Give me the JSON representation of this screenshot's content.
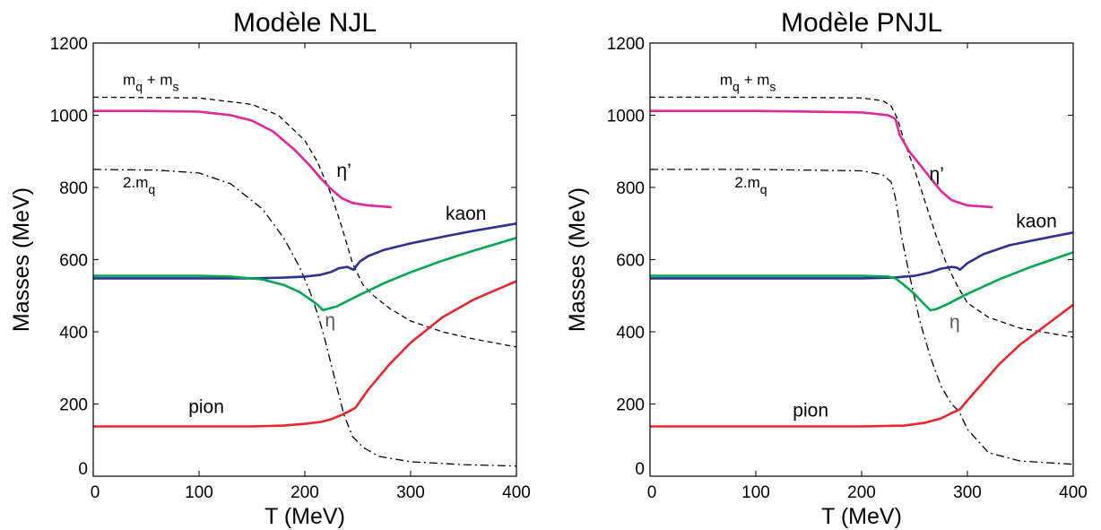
{
  "chart_data": [
    {
      "type": "line",
      "title": "Modèle NJL",
      "xlabel": "T (MeV)",
      "ylabel": "Masses (MeV)",
      "xlim": [
        0,
        400
      ],
      "ylim": [
        0,
        1200
      ],
      "xticks": [
        "0",
        "100",
        "200",
        "300",
        "400"
      ],
      "yticks": [
        "0",
        "200",
        "400",
        "600",
        "800",
        "1000",
        "1200"
      ],
      "grid": false,
      "legend": "none",
      "annotations": [
        {
          "key": "mqms",
          "base": "m",
          "sub1": "q",
          "mid": " + m",
          "sub2": "s",
          "x": 28,
          "y": 1085
        },
        {
          "key": "twomq",
          "base": "2.m",
          "sub1": "q",
          "x": 28,
          "y": 800
        },
        {
          "key": "etaprime",
          "text": "η’",
          "x": 230,
          "y": 830,
          "color": "#000000"
        },
        {
          "key": "kaon",
          "text": "kaon",
          "x": 333,
          "y": 710,
          "color": "#000000"
        },
        {
          "key": "eta",
          "text": "η",
          "x": 219,
          "y": 415,
          "color": "#555555"
        },
        {
          "key": "pion",
          "text": "pion",
          "x": 90,
          "y": 175,
          "color": "#000000"
        }
      ],
      "series": [
        {
          "key": "mq_plus_ms",
          "color": "#000000",
          "style": "dashed",
          "x": [
            0,
            100,
            150,
            175,
            200,
            212,
            225,
            235,
            245,
            255,
            265,
            280,
            300,
            330,
            360,
            400
          ],
          "y": [
            1050,
            1048,
            1030,
            1000,
            930,
            870,
            780,
            690,
            590,
            530,
            500,
            465,
            430,
            400,
            380,
            358
          ]
        },
        {
          "key": "two_mq",
          "color": "#000000",
          "style": "dashdot",
          "x": [
            0,
            60,
            100,
            130,
            160,
            180,
            195,
            205,
            212,
            218,
            224,
            230,
            237,
            245,
            255,
            270,
            300,
            350,
            400
          ],
          "y": [
            850,
            848,
            840,
            810,
            740,
            660,
            580,
            510,
            450,
            390,
            320,
            250,
            170,
            110,
            80,
            55,
            40,
            32,
            28
          ]
        },
        {
          "key": "eta_prime",
          "color": "#e0269b",
          "style": "solid",
          "x": [
            0,
            50,
            100,
            130,
            150,
            170,
            190,
            205,
            215,
            225,
            235,
            245,
            260,
            282
          ],
          "y": [
            1012,
            1012,
            1010,
            1000,
            985,
            955,
            905,
            860,
            825,
            795,
            770,
            757,
            750,
            745
          ]
        },
        {
          "key": "kaon",
          "color": "#2e3192",
          "style": "solid",
          "x": [
            0,
            100,
            150,
            180,
            200,
            215,
            225,
            232,
            240,
            246,
            252,
            260,
            275,
            300,
            330,
            360,
            400
          ],
          "y": [
            548,
            548,
            548,
            550,
            553,
            558,
            566,
            576,
            580,
            572,
            595,
            610,
            627,
            645,
            663,
            680,
            700
          ]
        },
        {
          "key": "eta",
          "color": "#00a651",
          "style": "solid",
          "x": [
            0,
            100,
            130,
            160,
            180,
            195,
            205,
            212,
            217,
            230,
            250,
            275,
            300,
            330,
            360,
            400
          ],
          "y": [
            555,
            555,
            553,
            545,
            530,
            510,
            490,
            475,
            460,
            470,
            500,
            535,
            565,
            597,
            625,
            660
          ]
        },
        {
          "key": "pion",
          "color": "#e8262d",
          "style": "solid",
          "x": [
            0,
            100,
            150,
            180,
            200,
            215,
            225,
            235,
            242,
            248,
            260,
            280,
            300,
            330,
            360,
            400
          ],
          "y": [
            138,
            138,
            138,
            140,
            145,
            150,
            158,
            170,
            180,
            190,
            240,
            310,
            370,
            440,
            490,
            540
          ]
        }
      ]
    },
    {
      "type": "line",
      "title": "Modèle PNJL",
      "xlabel": "T (MeV)",
      "ylabel": "Masses (MeV)",
      "xlim": [
        0,
        400
      ],
      "ylim": [
        0,
        1200
      ],
      "xticks": [
        "0",
        "100",
        "200",
        "300",
        "400"
      ],
      "yticks": [
        "0",
        "200",
        "400",
        "600",
        "800",
        "1000",
        "1200"
      ],
      "grid": false,
      "legend": "none",
      "annotations": [
        {
          "key": "mqms",
          "base": "m",
          "sub1": "q",
          "mid": " + m",
          "sub2": "s",
          "x": 66,
          "y": 1085
        },
        {
          "key": "twomq",
          "base": "2.m",
          "sub1": "q",
          "x": 80,
          "y": 800
        },
        {
          "key": "etaprime",
          "text": "η’",
          "x": 264,
          "y": 820,
          "color": "#000000"
        },
        {
          "key": "kaon",
          "text": "kaon",
          "x": 346,
          "y": 690,
          "color": "#000000"
        },
        {
          "key": "eta",
          "text": "η",
          "x": 283,
          "y": 410,
          "color": "#555555"
        },
        {
          "key": "pion",
          "text": "pion",
          "x": 135,
          "y": 165,
          "color": "#000000"
        }
      ],
      "series": [
        {
          "key": "mq_plus_ms",
          "color": "#000000",
          "style": "dashed",
          "x": [
            0,
            100,
            200,
            220,
            228,
            234,
            240,
            250,
            260,
            270,
            280,
            290,
            300,
            320,
            350,
            400
          ],
          "y": [
            1050,
            1050,
            1048,
            1040,
            1025,
            990,
            930,
            850,
            760,
            670,
            590,
            530,
            480,
            440,
            410,
            385
          ]
        },
        {
          "key": "two_mq",
          "color": "#000000",
          "style": "dashdot",
          "x": [
            0,
            100,
            200,
            220,
            228,
            232,
            238,
            245,
            255,
            265,
            275,
            285,
            292,
            300,
            320,
            350,
            400
          ],
          "y": [
            850,
            850,
            846,
            835,
            815,
            770,
            660,
            560,
            430,
            330,
            250,
            200,
            180,
            130,
            65,
            42,
            33
          ]
        },
        {
          "key": "eta_prime",
          "color": "#e0269b",
          "style": "solid",
          "x": [
            0,
            100,
            200,
            225,
            232,
            236,
            245,
            260,
            275,
            285,
            300,
            324
          ],
          "y": [
            1012,
            1012,
            1008,
            1000,
            990,
            945,
            900,
            845,
            790,
            765,
            750,
            745
          ]
        },
        {
          "key": "kaon",
          "color": "#2e3192",
          "style": "solid",
          "x": [
            0,
            100,
            200,
            230,
            250,
            265,
            275,
            285,
            290,
            293,
            300,
            315,
            340,
            370,
            400
          ],
          "y": [
            548,
            548,
            548,
            550,
            555,
            565,
            575,
            580,
            578,
            572,
            590,
            615,
            640,
            658,
            675
          ]
        },
        {
          "key": "eta",
          "color": "#00a651",
          "style": "solid",
          "x": [
            0,
            100,
            200,
            225,
            232,
            240,
            250,
            258,
            265,
            270,
            280,
            300,
            330,
            360,
            400
          ],
          "y": [
            555,
            555,
            555,
            553,
            548,
            530,
            505,
            480,
            460,
            462,
            475,
            505,
            545,
            580,
            620
          ]
        },
        {
          "key": "pion",
          "color": "#e8262d",
          "style": "solid",
          "x": [
            0,
            100,
            200,
            240,
            260,
            275,
            285,
            293,
            300,
            315,
            330,
            350,
            375,
            400
          ],
          "y": [
            138,
            138,
            138,
            140,
            148,
            160,
            175,
            185,
            210,
            260,
            310,
            365,
            420,
            475
          ]
        }
      ]
    }
  ]
}
